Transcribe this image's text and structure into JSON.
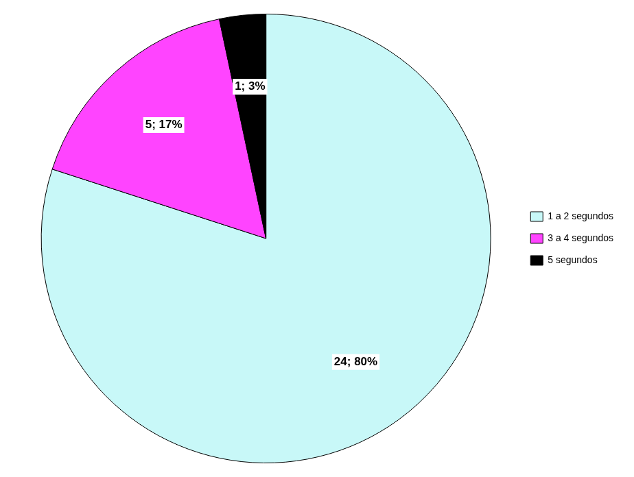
{
  "chart_data": {
    "type": "pie",
    "categories": [
      "1 a 2 segundos",
      "3 a 4 segundos",
      "5 segundos"
    ],
    "values": [
      24,
      5,
      1
    ],
    "value_labels": [
      "24; 80%",
      "5; 17%",
      "1; 3%"
    ],
    "colors": [
      "#c8f8f8",
      "#ff44ff",
      "#000000"
    ],
    "data_labels": true,
    "legend": "right"
  }
}
